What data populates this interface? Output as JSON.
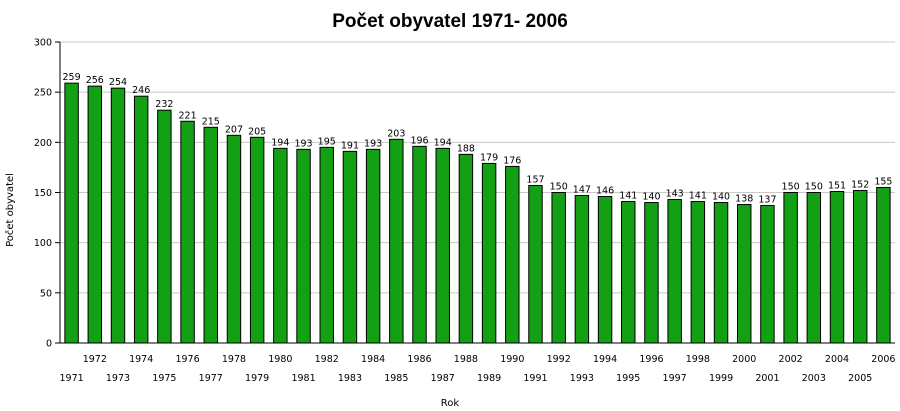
{
  "chart_data": {
    "type": "bar",
    "title": "Počet obyvatel 1971- 2006",
    "xlabel": "Rok",
    "ylabel": "Počet obyvatel",
    "ylim": [
      0,
      300
    ],
    "yticks": [
      "0",
      "50",
      "100",
      "150",
      "200",
      "250",
      "300"
    ],
    "grid": true,
    "bar_color": "#14a014",
    "categories": [
      "1971",
      "1972",
      "1973",
      "1974",
      "1975",
      "1976",
      "1977",
      "1978",
      "1979",
      "1980",
      "1981",
      "1982",
      "1983",
      "1984",
      "1985",
      "1986",
      "1987",
      "1988",
      "1989",
      "1990",
      "1991",
      "1992",
      "1993",
      "1994",
      "1995",
      "1996",
      "1997",
      "1998",
      "1999",
      "2000",
      "2001",
      "2002",
      "2003",
      "2004",
      "2005",
      "2006"
    ],
    "values": [
      259,
      256,
      254,
      246,
      232,
      221,
      215,
      207,
      205,
      194,
      193,
      195,
      191,
      193,
      203,
      196,
      194,
      188,
      179,
      176,
      157,
      150,
      147,
      146,
      141,
      140,
      143,
      141,
      140,
      138,
      137,
      150,
      150,
      151,
      152,
      155
    ]
  }
}
